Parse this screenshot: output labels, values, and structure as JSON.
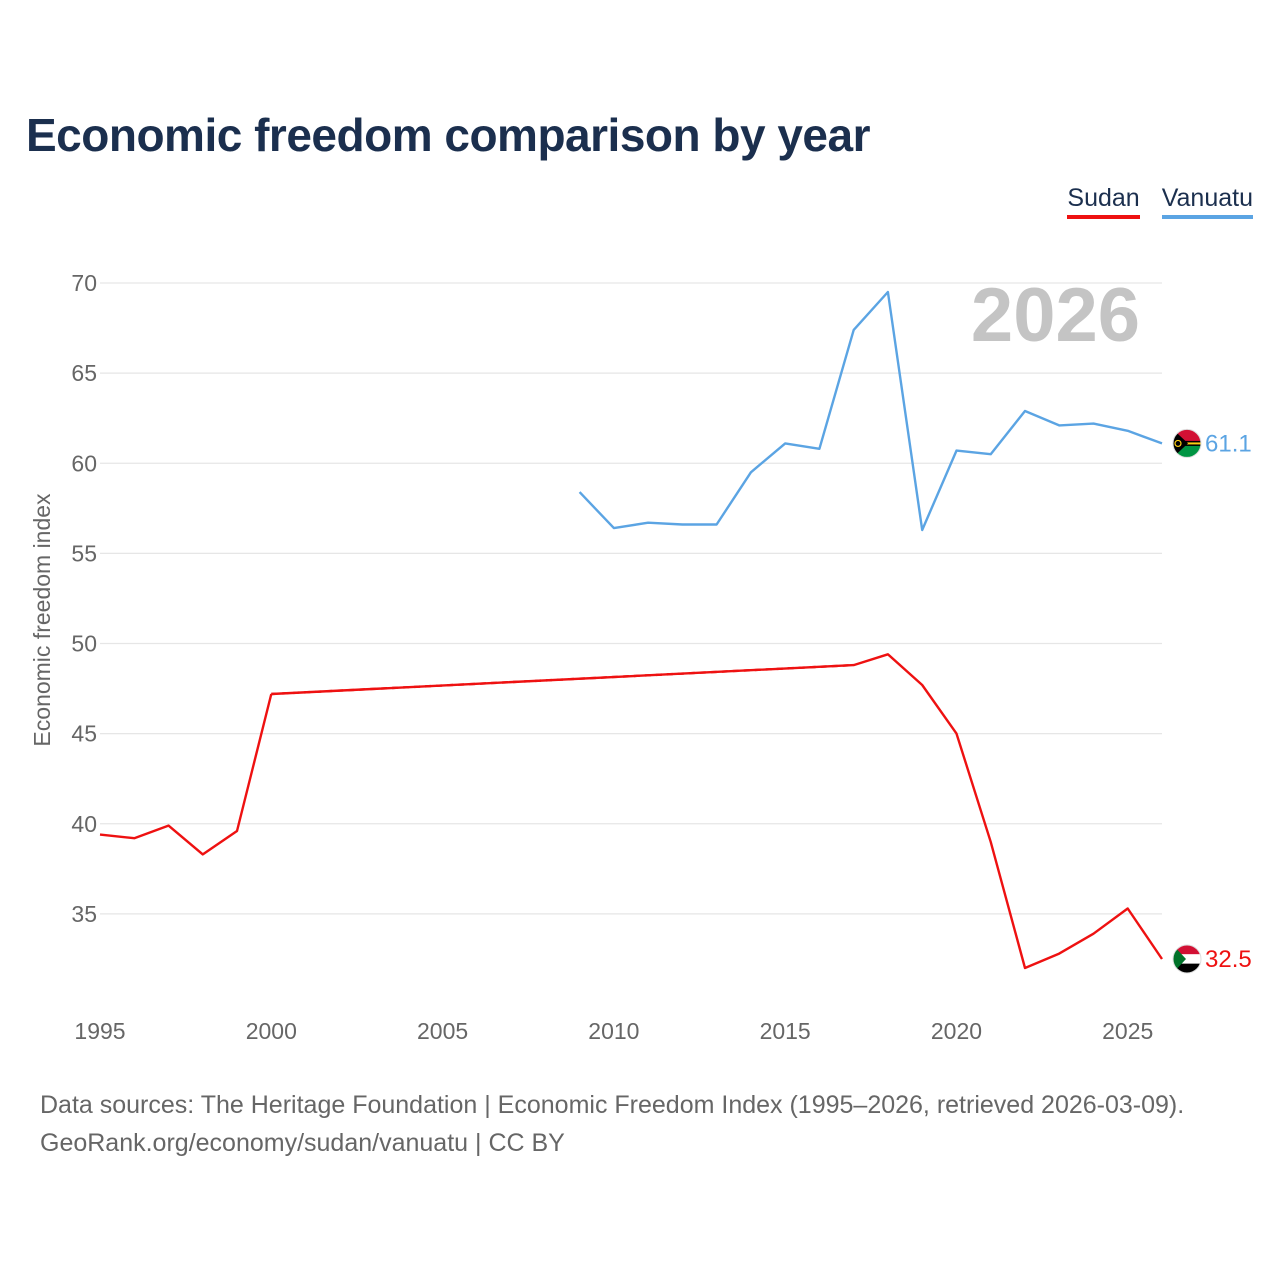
{
  "chart_data": {
    "type": "line",
    "title": "Economic freedom comparison by year",
    "ylabel": "Economic freedom index",
    "xlabel": "",
    "xlim": [
      1995,
      2026
    ],
    "ylim": [
      31,
      70
    ],
    "yticks": [
      35,
      40,
      45,
      50,
      55,
      60,
      65,
      70
    ],
    "xticks": [
      1995,
      2000,
      2005,
      2010,
      2015,
      2020,
      2025
    ],
    "year_label": "2026",
    "series": [
      {
        "name": "Sudan",
        "color": "#ee1111",
        "end_label": "32.5",
        "gap": [
          2000,
          2017
        ],
        "points": [
          [
            1995,
            39.4
          ],
          [
            1996,
            39.2
          ],
          [
            1997,
            39.9
          ],
          [
            1998,
            38.3
          ],
          [
            1999,
            39.6
          ],
          [
            2000,
            47.2
          ],
          [
            2017,
            48.8
          ],
          [
            2018,
            49.4
          ],
          [
            2019,
            47.7
          ],
          [
            2020,
            45.0
          ],
          [
            2021,
            39.0
          ],
          [
            2022,
            32.0
          ],
          [
            2023,
            32.8
          ],
          [
            2024,
            33.9
          ],
          [
            2025,
            35.3
          ],
          [
            2026,
            32.5
          ]
        ]
      },
      {
        "name": "Vanuatu",
        "color": "#5ba4e3",
        "end_label": "61.1",
        "points": [
          [
            2009,
            58.4
          ],
          [
            2010,
            56.4
          ],
          [
            2011,
            56.7
          ],
          [
            2012,
            56.6
          ],
          [
            2013,
            56.6
          ],
          [
            2014,
            59.5
          ],
          [
            2015,
            61.1
          ],
          [
            2016,
            60.8
          ],
          [
            2017,
            67.4
          ],
          [
            2018,
            69.5
          ],
          [
            2019,
            56.3
          ],
          [
            2020,
            60.7
          ],
          [
            2021,
            60.5
          ],
          [
            2022,
            62.9
          ],
          [
            2023,
            62.1
          ],
          [
            2024,
            62.2
          ],
          [
            2025,
            61.8
          ],
          [
            2026,
            61.1
          ]
        ]
      }
    ]
  },
  "footer": {
    "line1": "Data sources: The Heritage Foundation | Economic Freedom Index (1995–2026, retrieved 2026-03-09).",
    "line2": "GeoRank.org/economy/sudan/vanuatu | CC BY"
  }
}
